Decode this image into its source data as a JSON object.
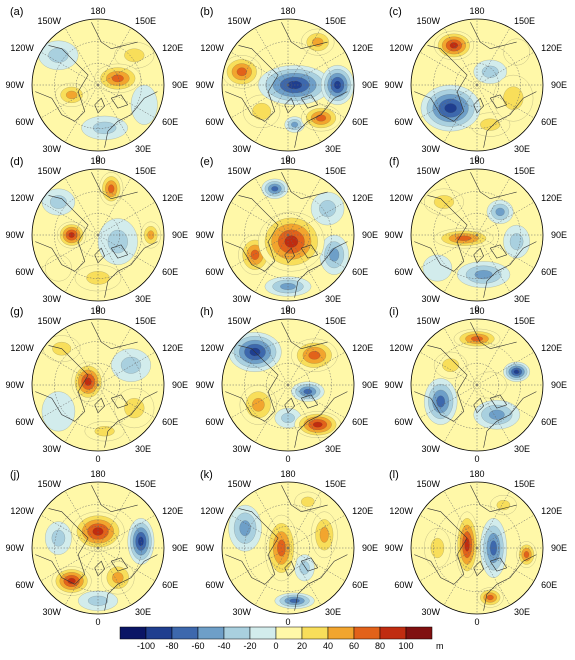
{
  "panels": [
    {
      "id": "a",
      "label": "(a)",
      "blobs": [
        {
          "dx": 0.3,
          "dy": -0.1,
          "rx": 0.35,
          "ry": 0.22,
          "v": 80
        },
        {
          "dx": -0.4,
          "dy": 0.15,
          "rx": 0.25,
          "ry": 0.18,
          "v": 50
        },
        {
          "dx": 0.55,
          "dy": -0.45,
          "rx": 0.3,
          "ry": 0.2,
          "v": 30
        },
        {
          "dx": -0.6,
          "dy": -0.45,
          "rx": 0.3,
          "ry": 0.22,
          "v": -30
        },
        {
          "dx": 0.1,
          "dy": 0.65,
          "rx": 0.35,
          "ry": 0.18,
          "v": -25
        },
        {
          "dx": 0.7,
          "dy": 0.3,
          "rx": 0.2,
          "ry": 0.3,
          "v": -20
        }
      ]
    },
    {
      "id": "b",
      "label": "(b)",
      "blobs": [
        {
          "dx": 0.1,
          "dy": 0.0,
          "rx": 0.55,
          "ry": 0.3,
          "v": -90
        },
        {
          "dx": 0.75,
          "dy": 0.0,
          "rx": 0.25,
          "ry": 0.3,
          "v": -100
        },
        {
          "dx": -0.7,
          "dy": -0.2,
          "rx": 0.3,
          "ry": 0.25,
          "v": 70
        },
        {
          "dx": 0.5,
          "dy": 0.5,
          "rx": 0.3,
          "ry": 0.2,
          "v": 80
        },
        {
          "dx": 0.45,
          "dy": -0.65,
          "rx": 0.25,
          "ry": 0.2,
          "v": 60
        },
        {
          "dx": -0.4,
          "dy": 0.4,
          "rx": 0.28,
          "ry": 0.25,
          "v": 40
        },
        {
          "dx": 0.1,
          "dy": 0.6,
          "rx": 0.15,
          "ry": 0.12,
          "v": -60
        }
      ]
    },
    {
      "id": "c",
      "label": "(c)",
      "blobs": [
        {
          "dx": -0.4,
          "dy": 0.35,
          "rx": 0.45,
          "ry": 0.35,
          "v": -100
        },
        {
          "dx": -0.35,
          "dy": -0.6,
          "rx": 0.3,
          "ry": 0.22,
          "v": 90
        },
        {
          "dx": 0.2,
          "dy": -0.2,
          "rx": 0.25,
          "ry": 0.18,
          "v": -40
        },
        {
          "dx": 0.55,
          "dy": 0.2,
          "rx": 0.3,
          "ry": 0.35,
          "v": 40
        },
        {
          "dx": 0.2,
          "dy": 0.6,
          "rx": 0.3,
          "ry": 0.18,
          "v": 30
        },
        {
          "dx": 0.6,
          "dy": -0.5,
          "rx": 0.2,
          "ry": 0.2,
          "v": 20
        }
      ]
    },
    {
      "id": "d",
      "label": "(d)",
      "blobs": [
        {
          "dx": -0.4,
          "dy": 0.0,
          "rx": 0.22,
          "ry": 0.2,
          "v": 90
        },
        {
          "dx": 0.2,
          "dy": -0.7,
          "rx": 0.18,
          "ry": 0.25,
          "v": 80
        },
        {
          "dx": 0.8,
          "dy": 0.0,
          "rx": 0.15,
          "ry": 0.2,
          "v": 60
        },
        {
          "dx": 0.3,
          "dy": 0.1,
          "rx": 0.3,
          "ry": 0.35,
          "v": -40
        },
        {
          "dx": -0.6,
          "dy": -0.5,
          "rx": 0.25,
          "ry": 0.2,
          "v": -30
        },
        {
          "dx": 0.0,
          "dy": 0.65,
          "rx": 0.35,
          "ry": 0.2,
          "v": 40
        },
        {
          "dx": -0.6,
          "dy": 0.5,
          "rx": 0.2,
          "ry": 0.2,
          "v": 20
        }
      ]
    },
    {
      "id": "e",
      "label": "(e)",
      "blobs": [
        {
          "dx": 0.05,
          "dy": 0.1,
          "rx": 0.5,
          "ry": 0.45,
          "v": 90
        },
        {
          "dx": -0.5,
          "dy": 0.3,
          "rx": 0.25,
          "ry": 0.3,
          "v": 70
        },
        {
          "dx": -0.2,
          "dy": -0.7,
          "rx": 0.2,
          "ry": 0.15,
          "v": -80
        },
        {
          "dx": 0.6,
          "dy": -0.4,
          "rx": 0.25,
          "ry": 0.25,
          "v": -40
        },
        {
          "dx": 0.7,
          "dy": 0.3,
          "rx": 0.22,
          "ry": 0.3,
          "v": -50
        },
        {
          "dx": 0.0,
          "dy": 0.78,
          "rx": 0.35,
          "ry": 0.15,
          "v": -60
        }
      ]
    },
    {
      "id": "f",
      "label": "(f)",
      "blobs": [
        {
          "dx": -0.2,
          "dy": 0.05,
          "rx": 0.45,
          "ry": 0.15,
          "v": 70
        },
        {
          "dx": 0.35,
          "dy": -0.35,
          "rx": 0.2,
          "ry": 0.18,
          "v": -60
        },
        {
          "dx": 0.6,
          "dy": 0.1,
          "rx": 0.2,
          "ry": 0.25,
          "v": -40
        },
        {
          "dx": 0.1,
          "dy": 0.6,
          "rx": 0.4,
          "ry": 0.2,
          "v": -50
        },
        {
          "dx": -0.5,
          "dy": -0.5,
          "rx": 0.3,
          "ry": 0.2,
          "v": 30
        },
        {
          "dx": -0.6,
          "dy": 0.5,
          "rx": 0.22,
          "ry": 0.2,
          "v": -20
        }
      ]
    },
    {
      "id": "g",
      "label": "(g)",
      "blobs": [
        {
          "dx": -0.15,
          "dy": -0.05,
          "rx": 0.25,
          "ry": 0.3,
          "v": 100
        },
        {
          "dx": -0.55,
          "dy": -0.55,
          "rx": 0.28,
          "ry": 0.2,
          "v": 40
        },
        {
          "dx": 0.5,
          "dy": -0.3,
          "rx": 0.3,
          "ry": 0.25,
          "v": -40
        },
        {
          "dx": 0.55,
          "dy": 0.35,
          "rx": 0.3,
          "ry": 0.3,
          "v": 40
        },
        {
          "dx": -0.6,
          "dy": 0.4,
          "rx": 0.25,
          "ry": 0.3,
          "v": -20
        },
        {
          "dx": 0.1,
          "dy": 0.7,
          "rx": 0.3,
          "ry": 0.15,
          "v": 30
        }
      ]
    },
    {
      "id": "h",
      "label": "(h)",
      "blobs": [
        {
          "dx": -0.5,
          "dy": -0.5,
          "rx": 0.4,
          "ry": 0.3,
          "v": -100
        },
        {
          "dx": 0.4,
          "dy": -0.45,
          "rx": 0.35,
          "ry": 0.25,
          "v": 80
        },
        {
          "dx": 0.3,
          "dy": 0.1,
          "rx": 0.25,
          "ry": 0.15,
          "v": -80
        },
        {
          "dx": 0.45,
          "dy": 0.6,
          "rx": 0.35,
          "ry": 0.2,
          "v": 100
        },
        {
          "dx": -0.45,
          "dy": 0.3,
          "rx": 0.28,
          "ry": 0.3,
          "v": 60
        },
        {
          "dx": 0.0,
          "dy": 0.5,
          "rx": 0.2,
          "ry": 0.15,
          "v": -30
        }
      ]
    },
    {
      "id": "i",
      "label": "(i)",
      "blobs": [
        {
          "dx": 0.0,
          "dy": -0.7,
          "rx": 0.35,
          "ry": 0.15,
          "v": 70
        },
        {
          "dx": -0.55,
          "dy": 0.25,
          "rx": 0.25,
          "ry": 0.35,
          "v": -80
        },
        {
          "dx": 0.3,
          "dy": 0.45,
          "rx": 0.35,
          "ry": 0.22,
          "v": -60
        },
        {
          "dx": 0.6,
          "dy": -0.2,
          "rx": 0.2,
          "ry": 0.15,
          "v": -90
        },
        {
          "dx": -0.4,
          "dy": -0.3,
          "rx": 0.25,
          "ry": 0.2,
          "v": 30
        },
        {
          "dx": 0.2,
          "dy": 0.0,
          "rx": 0.25,
          "ry": 0.2,
          "v": 20
        }
      ]
    },
    {
      "id": "j",
      "label": "(j)",
      "blobs": [
        {
          "dx": 0.0,
          "dy": -0.25,
          "rx": 0.4,
          "ry": 0.3,
          "v": 100
        },
        {
          "dx": -0.4,
          "dy": 0.5,
          "rx": 0.3,
          "ry": 0.22,
          "v": 90
        },
        {
          "dx": 0.65,
          "dy": -0.1,
          "rx": 0.2,
          "ry": 0.35,
          "v": -90
        },
        {
          "dx": -0.6,
          "dy": -0.15,
          "rx": 0.2,
          "ry": 0.25,
          "v": -40
        },
        {
          "dx": 0.3,
          "dy": 0.45,
          "rx": 0.25,
          "ry": 0.25,
          "v": 50
        },
        {
          "dx": 0.0,
          "dy": 0.8,
          "rx": 0.3,
          "ry": 0.15,
          "v": -40
        }
      ]
    },
    {
      "id": "k",
      "label": "(k)",
      "blobs": [
        {
          "dx": -0.1,
          "dy": 0.0,
          "rx": 0.25,
          "ry": 0.5,
          "v": 70
        },
        {
          "dx": -0.65,
          "dy": -0.3,
          "rx": 0.25,
          "ry": 0.35,
          "v": -60
        },
        {
          "dx": 0.55,
          "dy": -0.2,
          "rx": 0.2,
          "ry": 0.35,
          "v": 50
        },
        {
          "dx": 0.25,
          "dy": 0.3,
          "rx": 0.15,
          "ry": 0.2,
          "v": -40
        },
        {
          "dx": 0.1,
          "dy": 0.8,
          "rx": 0.3,
          "ry": 0.12,
          "v": -70
        },
        {
          "dx": 0.3,
          "dy": -0.7,
          "rx": 0.2,
          "ry": 0.15,
          "v": 40
        }
      ]
    },
    {
      "id": "l",
      "label": "(l)",
      "blobs": [
        {
          "dx": -0.15,
          "dy": -0.05,
          "rx": 0.18,
          "ry": 0.5,
          "v": 100
        },
        {
          "dx": 0.25,
          "dy": 0.0,
          "rx": 0.2,
          "ry": 0.45,
          "v": -70
        },
        {
          "dx": 0.75,
          "dy": 0.1,
          "rx": 0.15,
          "ry": 0.2,
          "v": 70
        },
        {
          "dx": -0.6,
          "dy": 0.0,
          "rx": 0.2,
          "ry": 0.3,
          "v": 40
        },
        {
          "dx": 0.2,
          "dy": 0.75,
          "rx": 0.2,
          "ry": 0.15,
          "v": 80
        },
        {
          "dx": 0.4,
          "dy": -0.65,
          "rx": 0.2,
          "ry": 0.15,
          "v": 30
        }
      ]
    }
  ],
  "lon_labels": [
    "180",
    "150E",
    "120E",
    "90E",
    "60E",
    "30E",
    "0",
    "30W",
    "60W",
    "90W",
    "120W",
    "150W"
  ],
  "colorbar": {
    "levels": [
      -100,
      -80,
      -60,
      -40,
      -20,
      0,
      20,
      40,
      60,
      80,
      100
    ],
    "tick_labels": [
      "-100",
      "-80",
      "-60",
      "-40",
      "-20",
      "0",
      "20",
      "40",
      "60",
      "80",
      "100"
    ],
    "unit": "m",
    "colors": [
      "#0a1565",
      "#1f3e8f",
      "#3d68ad",
      "#6e9fc8",
      "#a9d0df",
      "#d2ecec",
      "#fff8a8",
      "#f8de5a",
      "#f2a52e",
      "#e2621a",
      "#c02c10",
      "#801010"
    ]
  },
  "map_colors": {
    "coast": "#333333",
    "grid": "#666666",
    "outline": "#000000"
  }
}
